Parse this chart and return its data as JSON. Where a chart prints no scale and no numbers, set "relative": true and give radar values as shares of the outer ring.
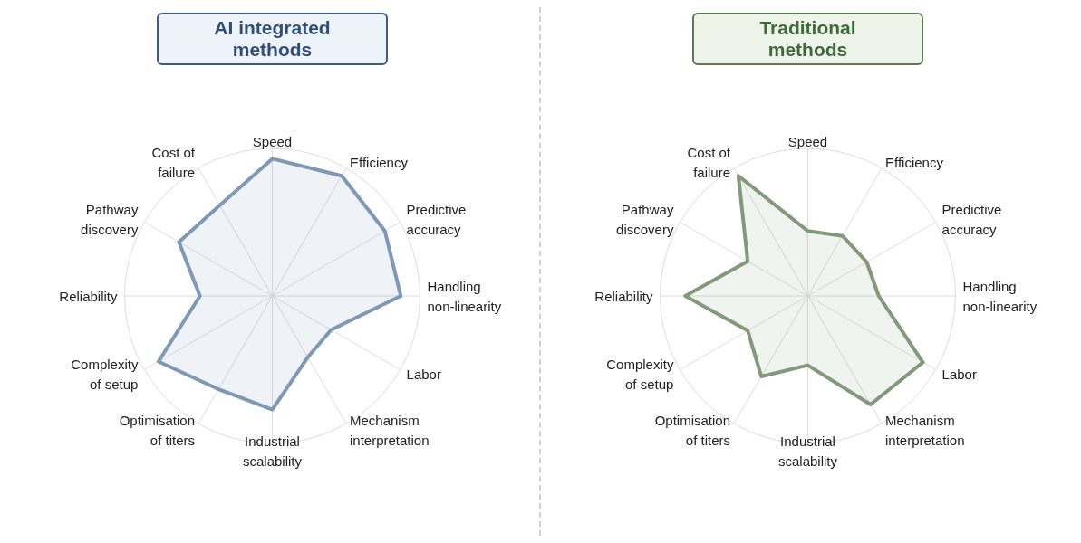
{
  "chart_data": [
    {
      "type": "radar",
      "title": "AI integrated methods",
      "relative": true,
      "grid": true,
      "categories": [
        "Speed",
        "Efficiency",
        "Predictive accuracy",
        "Handling non-linearity",
        "Labor",
        "Mechanism interpretation",
        "Industrial scalability",
        "Optimisation of titers",
        "Complexity of setup",
        "Reliability",
        "Pathway discovery",
        "Cost of failure"
      ],
      "series": [
        {
          "color": "#7e98b6",
          "values": [
            0.93,
            0.94,
            0.88,
            0.87,
            0.46,
            0.48,
            0.77,
            0.73,
            0.89,
            0.49,
            0.73,
            0.71
          ]
        }
      ]
    },
    {
      "type": "radar",
      "title": "Traditional methods",
      "relative": true,
      "grid": true,
      "categories": [
        "Speed",
        "Efficiency",
        "Predictive accuracy",
        "Handling non-linearity",
        "Labor",
        "Mechanism interpretation",
        "Industrial scalability",
        "Optimisation of titers",
        "Complexity of setup",
        "Reliability",
        "Pathway discovery",
        "Cost of failure"
      ],
      "series": [
        {
          "color": "#82997c",
          "values": [
            0.44,
            0.47,
            0.46,
            0.48,
            0.9,
            0.85,
            0.47,
            0.63,
            0.47,
            0.83,
            0.47,
            0.94
          ]
        }
      ]
    }
  ]
}
